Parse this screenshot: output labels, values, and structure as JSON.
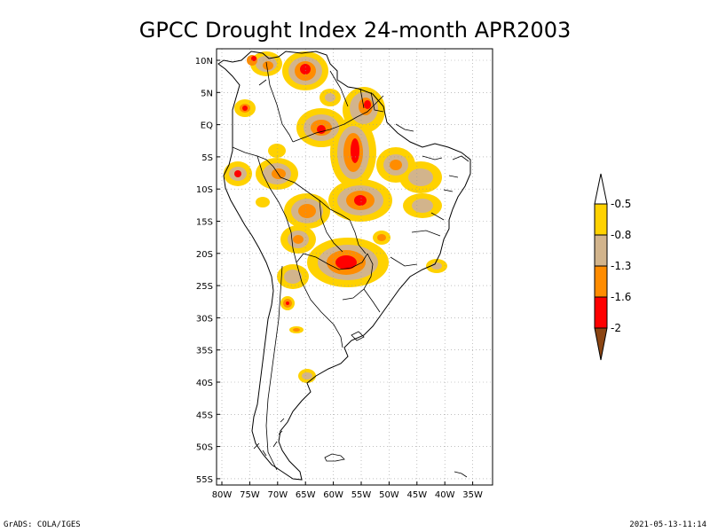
{
  "title": "GPCC Drought Index 24-month APR2003",
  "footer_left": "GrADS: COLA/IGES",
  "footer_right": "2021-05-13-11:14",
  "map": {
    "lat_labels": [
      "10N",
      "5N",
      "EQ",
      "5S",
      "10S",
      "15S",
      "20S",
      "25S",
      "30S",
      "35S",
      "40S",
      "45S",
      "50S",
      "55S"
    ],
    "lon_labels": [
      "80W",
      "75W",
      "70W",
      "65W",
      "60W",
      "55W",
      "50W",
      "45W",
      "40W",
      "35W"
    ],
    "grid": true
  },
  "colorbar": {
    "labels": [
      "-0.5",
      "-0.8",
      "-1.3",
      "-1.6",
      "-2"
    ],
    "colors": {
      "above": "#ffffff",
      "c1": "#ffd200",
      "c2": "#d2b48c",
      "c3": "#ff8c00",
      "c4": "#ff0000",
      "below": "#8b4513"
    }
  },
  "colors": {
    "light": "#ffd200",
    "tan": "#d2b48c",
    "orange": "#ff8c00",
    "red": "#ff0000",
    "grid": "#999999"
  }
}
